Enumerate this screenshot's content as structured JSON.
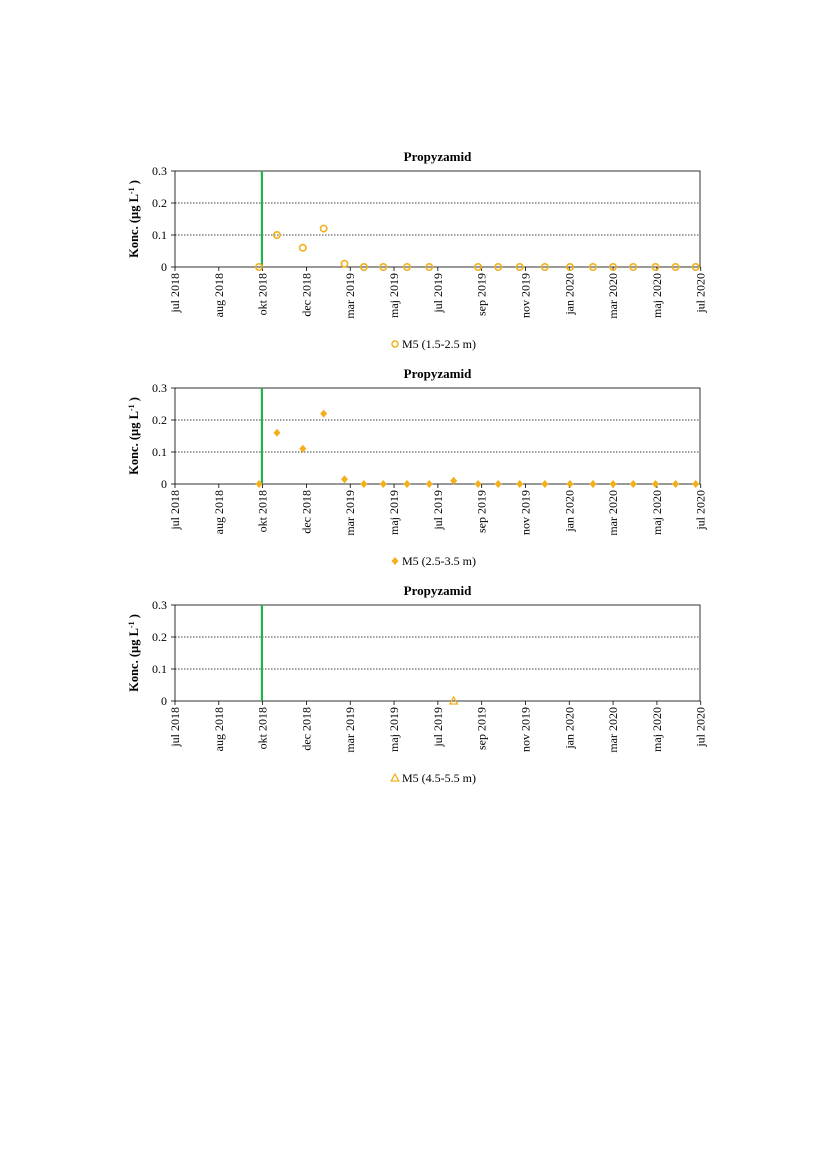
{
  "chart_data": [
    {
      "type": "scatter",
      "title": "Propyzamid",
      "ylabel": "Konc. (µg L",
      "ylabel_sup": "-1",
      "ylabel_end": " )",
      "ylim": [
        0,
        0.3
      ],
      "yticks": [
        0,
        0.1,
        0.2,
        0.3
      ],
      "ytick_labels": [
        "0",
        "0.1",
        "0.2",
        "0.3"
      ],
      "gridlines": [
        0.1,
        0.2
      ],
      "xlim": [
        "2018-07-01",
        "2020-07-01"
      ],
      "xticks": [
        {
          "date": "2018-07-01",
          "label": "jul 2018"
        },
        {
          "date": "2018-08-31",
          "label": "aug 2018"
        },
        {
          "date": "2018-10-31",
          "label": "okt 2018"
        },
        {
          "date": "2018-12-31",
          "label": "dec 2018"
        },
        {
          "date": "2019-03-02",
          "label": "mar 2019"
        },
        {
          "date": "2019-05-02",
          "label": "maj 2019"
        },
        {
          "date": "2019-07-02",
          "label": "jul 2019"
        },
        {
          "date": "2019-09-01",
          "label": "sep 2019"
        },
        {
          "date": "2019-11-01",
          "label": "nov 2019"
        },
        {
          "date": "2020-01-01",
          "label": "jan 2020"
        },
        {
          "date": "2020-03-02",
          "label": "mar 2020"
        },
        {
          "date": "2020-05-02",
          "label": "maj 2020"
        },
        {
          "date": "2020-07-02",
          "label": "jul 2020"
        }
      ],
      "vline": {
        "date": "2018-10-30",
        "color": "#22b14c"
      },
      "series": [
        {
          "name": "M5 (1.5-2.5 m)",
          "marker": "circle",
          "color": "#f2b01c",
          "points": [
            {
              "x": "2018-10-26",
              "y": 0
            },
            {
              "x": "2018-11-20",
              "y": 0.1
            },
            {
              "x": "2018-12-26",
              "y": 0.06
            },
            {
              "x": "2019-01-24",
              "y": 0.12
            },
            {
              "x": "2019-02-22",
              "y": 0.01
            },
            {
              "x": "2019-03-21",
              "y": 0
            },
            {
              "x": "2019-04-17",
              "y": 0
            },
            {
              "x": "2019-05-20",
              "y": 0
            },
            {
              "x": "2019-06-20",
              "y": 0
            },
            {
              "x": "2019-08-27",
              "y": 0
            },
            {
              "x": "2019-09-24",
              "y": 0
            },
            {
              "x": "2019-10-24",
              "y": 0
            },
            {
              "x": "2019-11-28",
              "y": 0
            },
            {
              "x": "2020-01-02",
              "y": 0
            },
            {
              "x": "2020-02-03",
              "y": 0
            },
            {
              "x": "2020-03-02",
              "y": 0
            },
            {
              "x": "2020-03-30",
              "y": 0
            },
            {
              "x": "2020-04-30",
              "y": 0
            },
            {
              "x": "2020-05-28",
              "y": 0
            },
            {
              "x": "2020-06-25",
              "y": 0
            }
          ]
        }
      ]
    },
    {
      "type": "scatter",
      "title": "Propyzamid",
      "ylabel": "Konc. (µg L",
      "ylabel_sup": "-1",
      "ylabel_end": " )",
      "ylim": [
        0,
        0.3
      ],
      "yticks": [
        0,
        0.1,
        0.2,
        0.3
      ],
      "ytick_labels": [
        "0",
        "0.1",
        "0.2",
        "0.3"
      ],
      "gridlines": [
        0.1,
        0.2
      ],
      "xlim": [
        "2018-07-01",
        "2020-07-01"
      ],
      "xticks": [
        {
          "date": "2018-07-01",
          "label": "jul 2018"
        },
        {
          "date": "2018-08-31",
          "label": "aug 2018"
        },
        {
          "date": "2018-10-31",
          "label": "okt 2018"
        },
        {
          "date": "2018-12-31",
          "label": "dec 2018"
        },
        {
          "date": "2019-03-02",
          "label": "mar 2019"
        },
        {
          "date": "2019-05-02",
          "label": "maj 2019"
        },
        {
          "date": "2019-07-02",
          "label": "jul 2019"
        },
        {
          "date": "2019-09-01",
          "label": "sep 2019"
        },
        {
          "date": "2019-11-01",
          "label": "nov 2019"
        },
        {
          "date": "2020-01-01",
          "label": "jan 2020"
        },
        {
          "date": "2020-03-02",
          "label": "mar 2020"
        },
        {
          "date": "2020-05-02",
          "label": "maj 2020"
        },
        {
          "date": "2020-07-02",
          "label": "jul 2020"
        }
      ],
      "vline": {
        "date": "2018-10-30",
        "color": "#22b14c"
      },
      "series": [
        {
          "name": "M5 (2.5-3.5 m)",
          "marker": "diamond",
          "color": "#f2b01c",
          "points": [
            {
              "x": "2018-10-26",
              "y": 0
            },
            {
              "x": "2018-11-20",
              "y": 0.16
            },
            {
              "x": "2018-12-26",
              "y": 0.11
            },
            {
              "x": "2019-01-24",
              "y": 0.22
            },
            {
              "x": "2019-02-22",
              "y": 0.015
            },
            {
              "x": "2019-03-21",
              "y": 0
            },
            {
              "x": "2019-04-17",
              "y": 0
            },
            {
              "x": "2019-05-20",
              "y": 0
            },
            {
              "x": "2019-06-20",
              "y": 0
            },
            {
              "x": "2019-07-24",
              "y": 0.01
            },
            {
              "x": "2019-08-27",
              "y": 0
            },
            {
              "x": "2019-09-24",
              "y": 0
            },
            {
              "x": "2019-10-24",
              "y": 0
            },
            {
              "x": "2019-11-28",
              "y": 0
            },
            {
              "x": "2020-01-02",
              "y": 0
            },
            {
              "x": "2020-02-03",
              "y": 0
            },
            {
              "x": "2020-03-02",
              "y": 0
            },
            {
              "x": "2020-03-30",
              "y": 0
            },
            {
              "x": "2020-04-30",
              "y": 0
            },
            {
              "x": "2020-05-28",
              "y": 0
            },
            {
              "x": "2020-06-25",
              "y": 0
            }
          ]
        }
      ]
    },
    {
      "type": "scatter",
      "title": "Propyzamid",
      "ylabel": "Konc. (µg L",
      "ylabel_sup": "-1",
      "ylabel_end": " )",
      "ylim": [
        0,
        0.3
      ],
      "yticks": [
        0,
        0.1,
        0.2,
        0.3
      ],
      "ytick_labels": [
        "0",
        "0.1",
        "0.2",
        "0.3"
      ],
      "gridlines": [
        0.1,
        0.2
      ],
      "xlim": [
        "2018-07-01",
        "2020-07-01"
      ],
      "xticks": [
        {
          "date": "2018-07-01",
          "label": "jul 2018"
        },
        {
          "date": "2018-08-31",
          "label": "aug 2018"
        },
        {
          "date": "2018-10-31",
          "label": "okt 2018"
        },
        {
          "date": "2018-12-31",
          "label": "dec 2018"
        },
        {
          "date": "2019-03-02",
          "label": "mar 2019"
        },
        {
          "date": "2019-05-02",
          "label": "maj 2019"
        },
        {
          "date": "2019-07-02",
          "label": "jul 2019"
        },
        {
          "date": "2019-09-01",
          "label": "sep 2019"
        },
        {
          "date": "2019-11-01",
          "label": "nov 2019"
        },
        {
          "date": "2020-01-01",
          "label": "jan 2020"
        },
        {
          "date": "2020-03-02",
          "label": "mar 2020"
        },
        {
          "date": "2020-05-02",
          "label": "maj 2020"
        },
        {
          "date": "2020-07-02",
          "label": "jul 2020"
        }
      ],
      "vline": {
        "date": "2018-10-30",
        "color": "#22b14c"
      },
      "series": [
        {
          "name": "M5 (4.5-5.5 m)",
          "marker": "triangle",
          "color": "#f2b01c",
          "points": [
            {
              "x": "2019-07-24",
              "y": 0
            }
          ]
        }
      ]
    }
  ]
}
